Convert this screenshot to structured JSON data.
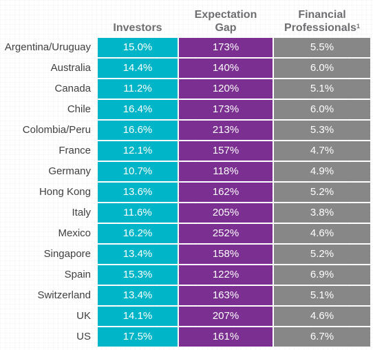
{
  "chart_data": {
    "type": "table",
    "columns": [
      {
        "key": "investors",
        "label": "Investors"
      },
      {
        "key": "gap",
        "label_lines": [
          "Expectation",
          "Gap"
        ]
      },
      {
        "key": "fp",
        "label_lines": [
          "Financial",
          "Professionals"
        ],
        "footnote": "1"
      }
    ],
    "rows": [
      {
        "country": "Argentina/Uruguay",
        "investors": "15.0%",
        "gap": "173%",
        "fp": "5.5%"
      },
      {
        "country": "Australia",
        "investors": "14.4%",
        "gap": "140%",
        "fp": "6.0%"
      },
      {
        "country": "Canada",
        "investors": "11.2%",
        "gap": "120%",
        "fp": "5.1%"
      },
      {
        "country": "Chile",
        "investors": "16.4%",
        "gap": "173%",
        "fp": "6.0%"
      },
      {
        "country": "Colombia/Peru",
        "investors": "16.6%",
        "gap": "213%",
        "fp": "5.3%"
      },
      {
        "country": "France",
        "investors": "12.1%",
        "gap": "157%",
        "fp": "4.7%"
      },
      {
        "country": "Germany",
        "investors": "10.7%",
        "gap": "118%",
        "fp": "4.9%"
      },
      {
        "country": "Hong Kong",
        "investors": "13.6%",
        "gap": "162%",
        "fp": "5.2%"
      },
      {
        "country": "Italy",
        "investors": "11.6%",
        "gap": "205%",
        "fp": "3.8%"
      },
      {
        "country": "Mexico",
        "investors": "16.2%",
        "gap": "252%",
        "fp": "4.6%"
      },
      {
        "country": "Singapore",
        "investors": "13.4%",
        "gap": "158%",
        "fp": "5.2%"
      },
      {
        "country": "Spain",
        "investors": "15.3%",
        "gap": "122%",
        "fp": "6.9%"
      },
      {
        "country": "Switzerland",
        "investors": "13.4%",
        "gap": "163%",
        "fp": "5.1%"
      },
      {
        "country": "UK",
        "investors": "14.1%",
        "gap": "207%",
        "fp": "4.6%"
      },
      {
        "country": "US",
        "investors": "17.5%",
        "gap": "161%",
        "fp": "6.7%"
      }
    ],
    "colors": {
      "investors": "#00b5c8",
      "gap": "#7b2f91",
      "fp": "#878787",
      "header_text": "#6d6e71",
      "row_label_text": "#404040"
    }
  }
}
